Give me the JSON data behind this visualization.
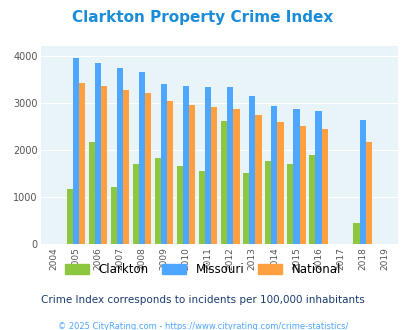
{
  "title": "Clarkton Property Crime Index",
  "title_color": "#1a8cd8",
  "years": [
    2004,
    2005,
    2006,
    2007,
    2008,
    2009,
    2010,
    2011,
    2012,
    2013,
    2014,
    2015,
    2016,
    2017,
    2018,
    2019
  ],
  "clarkton": [
    0,
    1180,
    2160,
    1210,
    1700,
    1820,
    1650,
    1550,
    2620,
    1510,
    1760,
    1700,
    1900,
    0,
    460,
    0
  ],
  "missouri": [
    0,
    3950,
    3840,
    3730,
    3650,
    3400,
    3360,
    3340,
    3340,
    3140,
    2930,
    2870,
    2820,
    0,
    2640,
    0
  ],
  "national": [
    0,
    3420,
    3360,
    3280,
    3210,
    3040,
    2960,
    2910,
    2870,
    2730,
    2600,
    2500,
    2450,
    0,
    2170,
    0
  ],
  "clarkton_color": "#8dc63f",
  "missouri_color": "#4da6ff",
  "national_color": "#ffa040",
  "bg_color": "#e8f4f8",
  "ylim": [
    0,
    4200
  ],
  "yticks": [
    0,
    1000,
    2000,
    3000,
    4000
  ],
  "subtitle": "Crime Index corresponds to incidents per 100,000 inhabitants",
  "footer": "© 2025 CityRating.com - https://www.cityrating.com/crime-statistics/",
  "subtitle_color": "#1a3c6e",
  "footer_color": "#4da6ff"
}
